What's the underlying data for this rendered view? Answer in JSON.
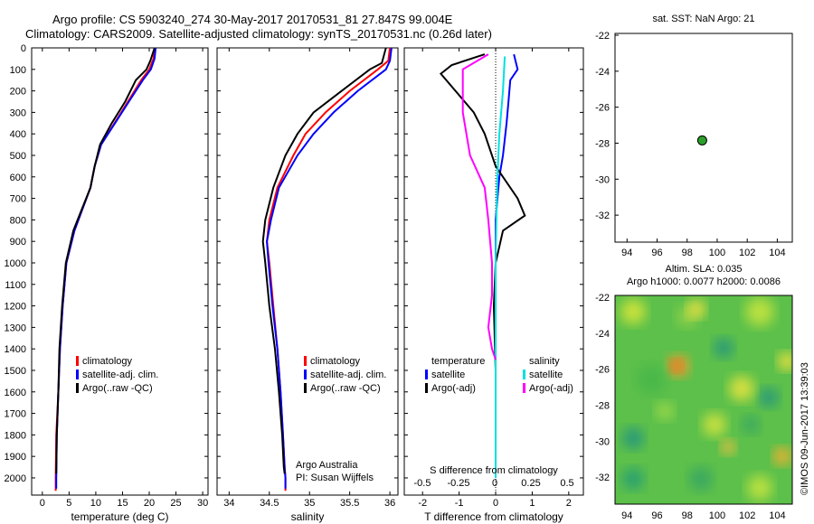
{
  "header": {
    "line1": "Argo profile: CS 5903240_274 30-May-2017 20170531_81 27.847S 99.004E",
    "line2": "Climatology: CARS2009. Satellite-adjusted climatology: synTS_20170531.nc (0.26d later)"
  },
  "colors": {
    "climatology": "#ff0000",
    "satellite": "#0000ff",
    "argo": "#000000",
    "satellite_diff": "#00e0e0",
    "argo_adj_diff": "#ff00ff",
    "marker": "#2ca02c"
  },
  "depth_axis": {
    "ticks": [
      "0",
      "100",
      "200",
      "300",
      "400",
      "500",
      "600",
      "700",
      "800",
      "900",
      "1000",
      "1100",
      "1200",
      "1300",
      "1400",
      "1500",
      "1600",
      "1700",
      "1800",
      "1900",
      "2000"
    ],
    "range": [
      0,
      2080
    ]
  },
  "chart_data": [
    {
      "type": "line",
      "xlabel": "temperature (deg C)",
      "xlim": [
        -2,
        31
      ],
      "ylim": [
        2080,
        0
      ],
      "xticks": [
        "0",
        "5",
        "10",
        "15",
        "20",
        "25",
        "30"
      ],
      "legend": [
        "climatology",
        "satellite-adj. clim.",
        "Argo(..raw -QC)"
      ],
      "series": [
        {
          "name": "climatology",
          "x": [
            21,
            20.8,
            20,
            18.5,
            16,
            13.5,
            11,
            9.8,
            9,
            7.5,
            6,
            4.5,
            3.8,
            3.3,
            3,
            2.6,
            2.5,
            2.5
          ],
          "y": [
            0,
            50,
            100,
            150,
            250,
            350,
            450,
            550,
            650,
            750,
            850,
            1000,
            1200,
            1400,
            1600,
            1800,
            2000,
            2060
          ]
        },
        {
          "name": "satellite-adj. clim.",
          "x": [
            21.2,
            21,
            20.3,
            18.8,
            16.2,
            13.6,
            11,
            9.8,
            9,
            7.5,
            6,
            4.5,
            3.8,
            3.3,
            3,
            2.7,
            2.6,
            2.6
          ],
          "y": [
            0,
            50,
            100,
            150,
            250,
            350,
            450,
            550,
            650,
            750,
            850,
            1000,
            1200,
            1400,
            1600,
            1800,
            2000,
            2050
          ]
        },
        {
          "name": "Argo(..raw -QC)",
          "x": [
            21,
            20.2,
            19.5,
            17.5,
            15.5,
            13,
            10.8,
            9.8,
            9,
            7.4,
            5.8,
            4.4,
            3.7,
            3.2,
            3,
            2.7,
            2.6
          ],
          "y": [
            0,
            60,
            100,
            150,
            250,
            350,
            450,
            550,
            650,
            750,
            850,
            1000,
            1200,
            1400,
            1600,
            1800,
            1980
          ]
        }
      ]
    },
    {
      "type": "line",
      "xlabel": "salinity",
      "xlim": [
        33.85,
        36.1
      ],
      "ylim": [
        2080,
        0
      ],
      "xticks": [
        "34",
        "34.5",
        "35",
        "35.5",
        "36"
      ],
      "legend": [
        "climatology",
        "satellite-adj. clim.",
        "Argo(..raw -QC)"
      ],
      "annotation": [
        "Argo Australia",
        "PI: Susan Wijffels"
      ],
      "series": [
        {
          "name": "climatology",
          "x": [
            36,
            35.98,
            35.85,
            35.5,
            35.2,
            34.95,
            34.8,
            34.6,
            34.5,
            34.47,
            34.5,
            34.55,
            34.6,
            34.64,
            34.67,
            34.69,
            34.7,
            34.7
          ],
          "y": [
            0,
            60,
            100,
            200,
            300,
            400,
            500,
            650,
            800,
            900,
            1000,
            1200,
            1400,
            1600,
            1800,
            1950,
            2000,
            2060
          ]
        },
        {
          "name": "satellite-adj. clim.",
          "x": [
            36.02,
            36,
            35.95,
            35.6,
            35.3,
            35.05,
            34.85,
            34.62,
            34.52,
            34.47,
            34.49,
            34.54,
            34.6,
            34.64,
            34.67,
            34.69,
            34.7,
            34.7
          ],
          "y": [
            0,
            60,
            100,
            200,
            300,
            400,
            500,
            650,
            800,
            900,
            1000,
            1200,
            1400,
            1600,
            1800,
            1950,
            2000,
            2050
          ]
        },
        {
          "name": "Argo(..raw -QC)",
          "x": [
            35.95,
            35.9,
            35.75,
            35.4,
            35.05,
            34.85,
            34.7,
            34.55,
            34.45,
            34.42,
            34.45,
            34.5,
            34.57,
            34.62,
            34.66,
            34.68,
            34.69
          ],
          "y": [
            0,
            70,
            100,
            200,
            300,
            400,
            500,
            650,
            800,
            900,
            1000,
            1200,
            1400,
            1600,
            1800,
            1950,
            1980
          ]
        }
      ]
    },
    {
      "type": "line",
      "xlabel": "T difference from climatology",
      "top_axis_label": "S difference from climatology",
      "xlim": [
        -2.5,
        2.4
      ],
      "ylim": [
        2080,
        0
      ],
      "xticks": [
        "-2",
        "-1",
        "0",
        "1",
        "2"
      ],
      "top_ticks": [
        "-0.5",
        "-0.25",
        "0",
        "0.25",
        "0.5"
      ],
      "legend_temperature": [
        "temperature",
        "satellite",
        "Argo(-adj)"
      ],
      "legend_salinity": [
        "salinity",
        "satellite",
        "Argo(-adj)"
      ],
      "series": [
        {
          "name": "temperature satellite",
          "x": [
            0.5,
            0.6,
            0.4,
            0.35,
            0.3,
            0.2,
            0.1,
            0.05,
            0,
            0,
            0,
            0,
            0,
            0
          ],
          "y": [
            30,
            100,
            150,
            250,
            350,
            500,
            600,
            700,
            800,
            1000,
            1200,
            1400,
            1700,
            2000
          ]
        },
        {
          "name": "temperature Argo(-adj)",
          "x": [
            -0.3,
            -1.2,
            -1.5,
            -1.1,
            -0.6,
            -0.3,
            0,
            0.6,
            0.8,
            0.2,
            0,
            -0.05,
            0
          ],
          "y": [
            30,
            80,
            120,
            200,
            300,
            400,
            550,
            700,
            780,
            850,
            1000,
            1200,
            1500
          ]
        },
        {
          "name": "salinity satellite",
          "x": [
            0.25,
            0.2,
            0.1,
            0.05,
            0.02,
            0,
            0,
            0,
            0
          ],
          "y": [
            40,
            200,
            400,
            600,
            800,
            1000,
            1400,
            1800,
            2000
          ]
        },
        {
          "name": "salinity Argo(-adj)",
          "x": [
            -0.2,
            -0.9,
            -0.9,
            -0.7,
            -0.3,
            -0.2,
            -0.1,
            -0.1,
            -0.2,
            -0.1,
            0
          ],
          "y": [
            30,
            100,
            300,
            500,
            650,
            800,
            1000,
            1150,
            1300,
            1400,
            1450
          ]
        }
      ]
    },
    {
      "type": "scatter",
      "title": "sat. SST: NaN Argo: 21",
      "xlim": [
        93.2,
        105
      ],
      "ylim": [
        -33.5,
        -21.9
      ],
      "xticks": [
        "94",
        "96",
        "98",
        "100",
        "102",
        "104"
      ],
      "yticks": [
        "-22",
        "-24",
        "-26",
        "-28",
        "-30",
        "-32"
      ],
      "x": [
        99.004
      ],
      "y": [
        -27.847
      ]
    },
    {
      "type": "heatmap",
      "title": [
        "Altim. SLA: 0.035",
        "Argo h1000: 0.0077 h2000: 0.0086"
      ],
      "xlim": [
        93.2,
        105
      ],
      "ylim": [
        -33.5,
        -21.9
      ],
      "xticks": [
        "94",
        "96",
        "98",
        "100",
        "102",
        "104"
      ],
      "yticks": [
        "-22",
        "-24",
        "-26",
        "-28",
        "-30",
        "-32"
      ],
      "side_label": "©IMOS 09-Jun-2017 13:39:03"
    }
  ]
}
